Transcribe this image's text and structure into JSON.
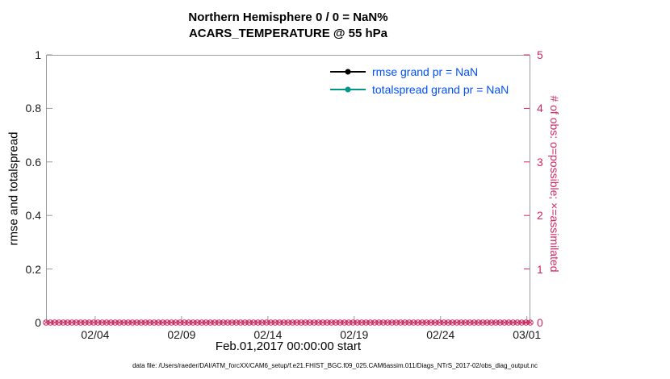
{
  "title": {
    "line1": "Northern Hemisphere 0 / 0 = NaN%",
    "line2": "ACARS_TEMPERATURE @ 55 hPa"
  },
  "colors": {
    "obs": "#d22660",
    "rmse": "#000000",
    "totalspread": "#00968a",
    "legend_text": "#0050ff",
    "axis_box": "#9a9a9a"
  },
  "left_axis": {
    "label": "rmse and totalspread",
    "ticks": [
      0,
      0.2,
      0.4,
      0.6,
      0.8,
      1
    ],
    "range": [
      0,
      1
    ]
  },
  "right_axis": {
    "label": "# of obs: o=possible; ×=assimilated",
    "ticks": [
      0,
      1,
      2,
      3,
      4,
      5
    ],
    "range": [
      0,
      5
    ]
  },
  "x_axis": {
    "label": "Feb.01,2017 00:00:00 start",
    "ticks": [
      "02/04",
      "02/09",
      "02/14",
      "02/19",
      "02/24",
      "03/01"
    ],
    "tick_days": [
      4,
      9,
      14,
      19,
      24,
      29
    ],
    "domain_days": [
      1.15,
      29.2
    ]
  },
  "legend": [
    {
      "name": "rmse",
      "label": "rmse grand pr = NaN"
    },
    {
      "name": "totalspread",
      "label": "totalspread grand pr = NaN"
    }
  ],
  "caption": "data file: /Users/raeder/DAI/ATM_forcXX/CAM6_setup/f.e21.FHIST_BGC.f09_025.CAM6assim.011/Diags_NTrS_2017-02/obs_diag_output.nc",
  "chart_data": {
    "type": "line",
    "title": "Northern Hemisphere 0 / 0 = NaN%",
    "subtitle": "ACARS_TEMPERATURE @ 55 hPa",
    "xlabel": "Feb.01,2017 00:00:00 start",
    "ylabel_left": "rmse and totalspread",
    "ylabel_right": "# of obs: o=possible; ×=assimilated",
    "x_ticks": [
      "02/04",
      "02/09",
      "02/14",
      "02/19",
      "02/24",
      "03/01"
    ],
    "ylim_left": [
      0,
      1
    ],
    "ylim_right": [
      0,
      5
    ],
    "grid": false,
    "legend_position": "upper-right-inside",
    "series": [
      {
        "name": "rmse",
        "axis": "left",
        "grand_prior": "NaN",
        "values": []
      },
      {
        "name": "totalspread",
        "axis": "left",
        "grand_prior": "NaN",
        "values": []
      },
      {
        "name": "obs_possible",
        "axis": "right",
        "marker": "o",
        "constant_value": 0,
        "n_points": 113
      },
      {
        "name": "obs_assimilated",
        "axis": "right",
        "marker": "×",
        "constant_value": 0,
        "n_points": 113
      }
    ]
  }
}
